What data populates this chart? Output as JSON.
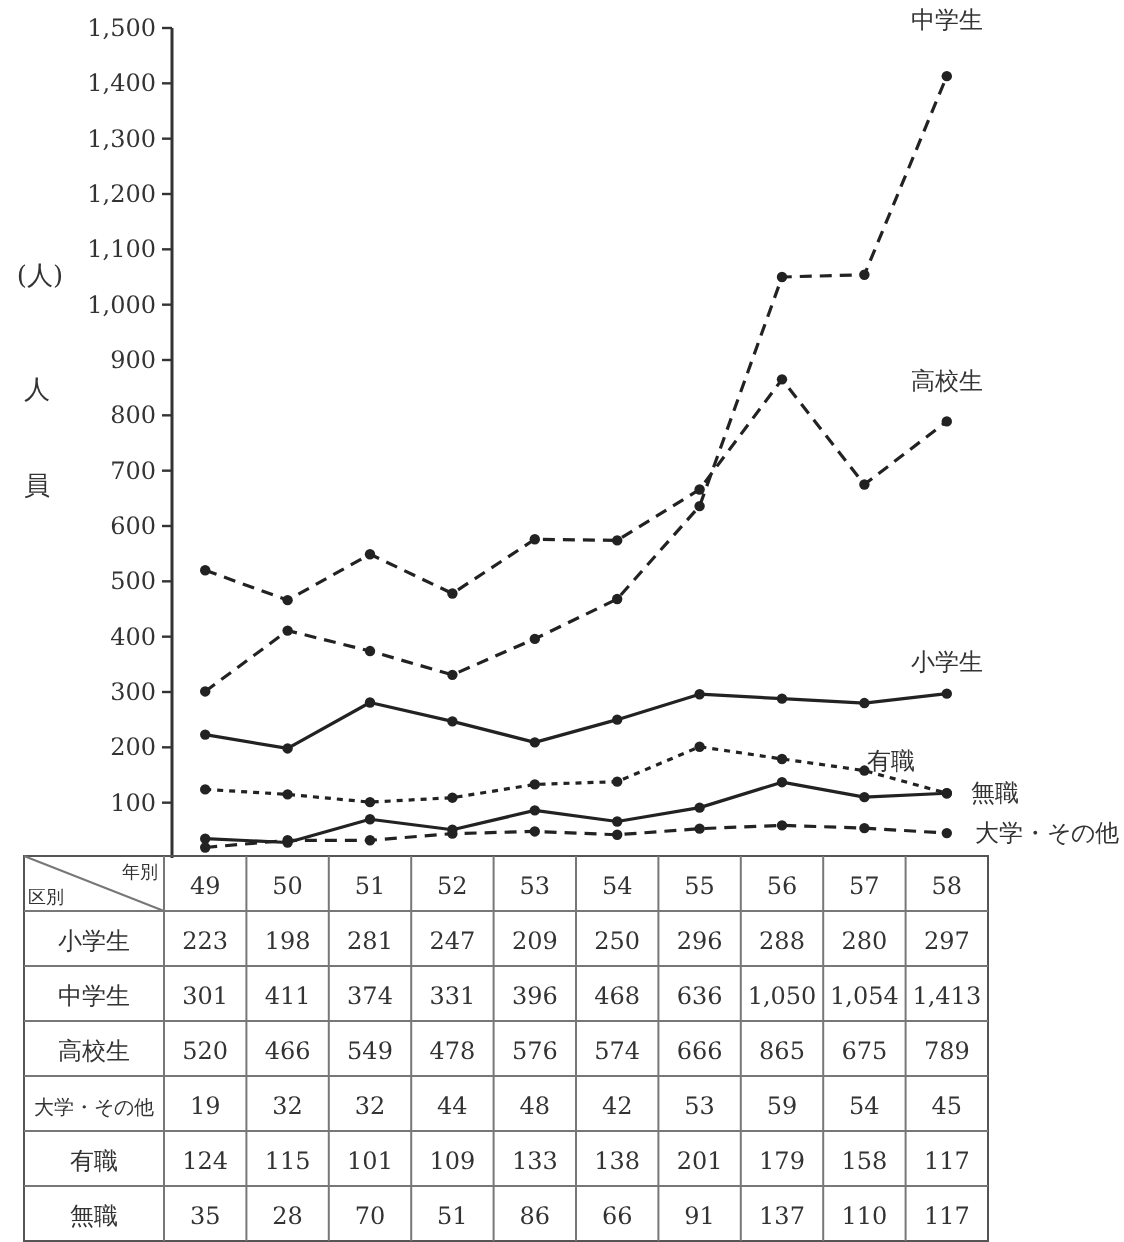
{
  "chart_data": {
    "type": "line",
    "ylabel": "人員",
    "xlabel": "年別",
    "annotations": [
      "(人)",
      "区別"
    ],
    "categories": [
      "49",
      "50",
      "51",
      "52",
      "53",
      "54",
      "55",
      "56",
      "57",
      "58"
    ],
    "ylim": [
      0,
      1500
    ],
    "yticks": [
      {
        "value": 100,
        "label": "100"
      },
      {
        "value": 200,
        "label": "200"
      },
      {
        "value": 300,
        "label": "300"
      },
      {
        "value": 400,
        "label": "400"
      },
      {
        "value": 500,
        "label": "500"
      },
      {
        "value": 600,
        "label": "600"
      },
      {
        "value": 700,
        "label": "700"
      },
      {
        "value": 800,
        "label": "800"
      },
      {
        "value": 900,
        "label": "900"
      },
      {
        "value": 1000,
        "label": "1,000"
      },
      {
        "value": 1100,
        "label": "1,100"
      },
      {
        "value": 1200,
        "label": "1,200"
      },
      {
        "value": 1300,
        "label": "1,300"
      },
      {
        "value": 1400,
        "label": "1,400"
      },
      {
        "value": 1500,
        "label": "1,500"
      }
    ],
    "marker": "circle",
    "series": [
      {
        "name": "小学生",
        "color": "#222222",
        "line_style": "solid",
        "values": [
          223,
          198,
          281,
          247,
          209,
          250,
          296,
          288,
          280,
          297
        ],
        "value_labels": [
          "223",
          "198",
          "281",
          "247",
          "209",
          "250",
          "296",
          "288",
          "280",
          "297"
        ]
      },
      {
        "name": "中学生",
        "color": "#222222",
        "line_style": "dashed",
        "values": [
          301,
          411,
          374,
          331,
          396,
          468,
          636,
          1050,
          1054,
          1413
        ],
        "value_labels": [
          "301",
          "411",
          "374",
          "331",
          "396",
          "468",
          "636",
          "1,050",
          "1,054",
          "1,413"
        ]
      },
      {
        "name": "高校生",
        "color": "#222222",
        "line_style": "dashed",
        "values": [
          520,
          466,
          549,
          478,
          576,
          574,
          666,
          865,
          675,
          789
        ],
        "value_labels": [
          "520",
          "466",
          "549",
          "478",
          "576",
          "574",
          "666",
          "865",
          "675",
          "789"
        ]
      },
      {
        "name": "大学・その他",
        "color": "#222222",
        "line_style": "dashed",
        "values": [
          19,
          32,
          32,
          44,
          48,
          42,
          53,
          59,
          54,
          45
        ],
        "value_labels": [
          "19",
          "32",
          "32",
          "44",
          "48",
          "42",
          "53",
          "59",
          "54",
          "45"
        ]
      },
      {
        "name": "有職",
        "color": "#222222",
        "line_style": "dotted",
        "values": [
          124,
          115,
          101,
          109,
          133,
          138,
          201,
          179,
          158,
          117
        ],
        "value_labels": [
          "124",
          "115",
          "101",
          "109",
          "133",
          "138",
          "201",
          "179",
          "158",
          "117"
        ]
      },
      {
        "name": "無職",
        "color": "#222222",
        "line_style": "solid",
        "values": [
          35,
          28,
          70,
          51,
          86,
          66,
          91,
          137,
          110,
          117
        ],
        "value_labels": [
          "35",
          "28",
          "70",
          "51",
          "86",
          "66",
          "91",
          "137",
          "110",
          "117"
        ]
      }
    ]
  }
}
